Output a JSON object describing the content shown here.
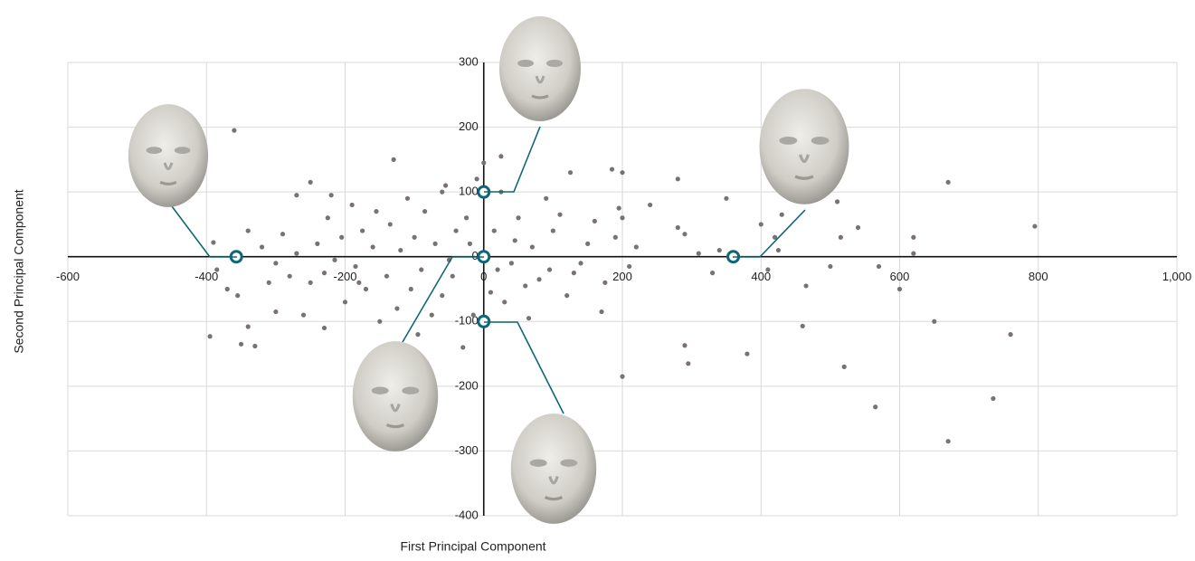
{
  "chart_data": {
    "type": "scatter",
    "x_label": "First Principal Component",
    "y_label": "Second Principal Component",
    "xlim": [
      -600,
      1000
    ],
    "ylim": [
      -400,
      300
    ],
    "xticks": [
      -600,
      -400,
      -200,
      0,
      200,
      400,
      600,
      800,
      {
        "value": 1000,
        "label": "1,000"
      }
    ],
    "yticks": [
      -400,
      -300,
      -200,
      -100,
      0,
      100,
      200,
      300
    ],
    "grid": true,
    "series": [
      {
        "color": "#7a7272",
        "marker": "dot",
        "x": [
          -390,
          -395,
          -360,
          -350,
          -330,
          -340,
          -300,
          -250,
          -270,
          -220,
          -130,
          670,
          795,
          760,
          735,
          670,
          650,
          565,
          520,
          460,
          380,
          290,
          295,
          200,
          200,
          185,
          125,
          25,
          0,
          600,
          620,
          620,
          570,
          540,
          515,
          510,
          500,
          465,
          430,
          420,
          425,
          410,
          400,
          350,
          340,
          330,
          310,
          280,
          280,
          290,
          240,
          220,
          210,
          200,
          195,
          190,
          175,
          170,
          160,
          150,
          140,
          130,
          120,
          110,
          100,
          95,
          80,
          70,
          65,
          60,
          50,
          45,
          40,
          30,
          25,
          15,
          10,
          -10,
          -15,
          -25,
          -30,
          -40,
          -45,
          -55,
          -60,
          -70,
          -75,
          -85,
          -90,
          -100,
          -105,
          -110,
          -120,
          -125,
          -135,
          -140,
          -150,
          -155,
          -160,
          -170,
          -175,
          -185,
          -190,
          -200,
          -205,
          -215,
          -225,
          -230,
          -240,
          -250,
          -260,
          -270,
          -280,
          -290,
          -300,
          -310,
          -320,
          -340,
          -355,
          -370,
          -385,
          -60,
          -20,
          20,
          90,
          -95,
          -50,
          -180,
          -230
        ],
        "values": [
          22,
          -123,
          195,
          -135,
          -138,
          -108,
          -85,
          115,
          95,
          95,
          150,
          115,
          47,
          -120,
          -219,
          -285,
          -100,
          -232,
          -170,
          -107,
          -150,
          -137,
          -165,
          -185,
          130,
          135,
          130,
          155,
          145,
          -50,
          30,
          5,
          -15,
          45,
          30,
          85,
          -15,
          -45,
          65,
          30,
          10,
          -20,
          50,
          90,
          10,
          -25,
          5,
          120,
          45,
          35,
          80,
          15,
          -15,
          60,
          75,
          30,
          -40,
          -85,
          55,
          20,
          -10,
          -25,
          -60,
          65,
          40,
          -20,
          -35,
          15,
          -95,
          -45,
          60,
          25,
          -10,
          -70,
          100,
          40,
          -55,
          120,
          -90,
          60,
          -140,
          40,
          -30,
          110,
          -60,
          20,
          -90,
          70,
          -20,
          30,
          -50,
          90,
          10,
          -80,
          50,
          -30,
          -100,
          70,
          15,
          -50,
          40,
          -15,
          80,
          -70,
          30,
          -5,
          60,
          -110,
          20,
          -40,
          -90,
          5,
          -30,
          35,
          -10,
          -40,
          15,
          40,
          -60,
          -50,
          -20,
          100,
          20,
          -20,
          90,
          -120,
          -5,
          -40,
          -25
        ]
      },
      {
        "color": "#0e6677",
        "marker": "ring",
        "x": [
          -357,
          0,
          0,
          0,
          360
        ],
        "values": [
          0,
          100,
          0,
          -100,
          0
        ]
      }
    ]
  }
}
